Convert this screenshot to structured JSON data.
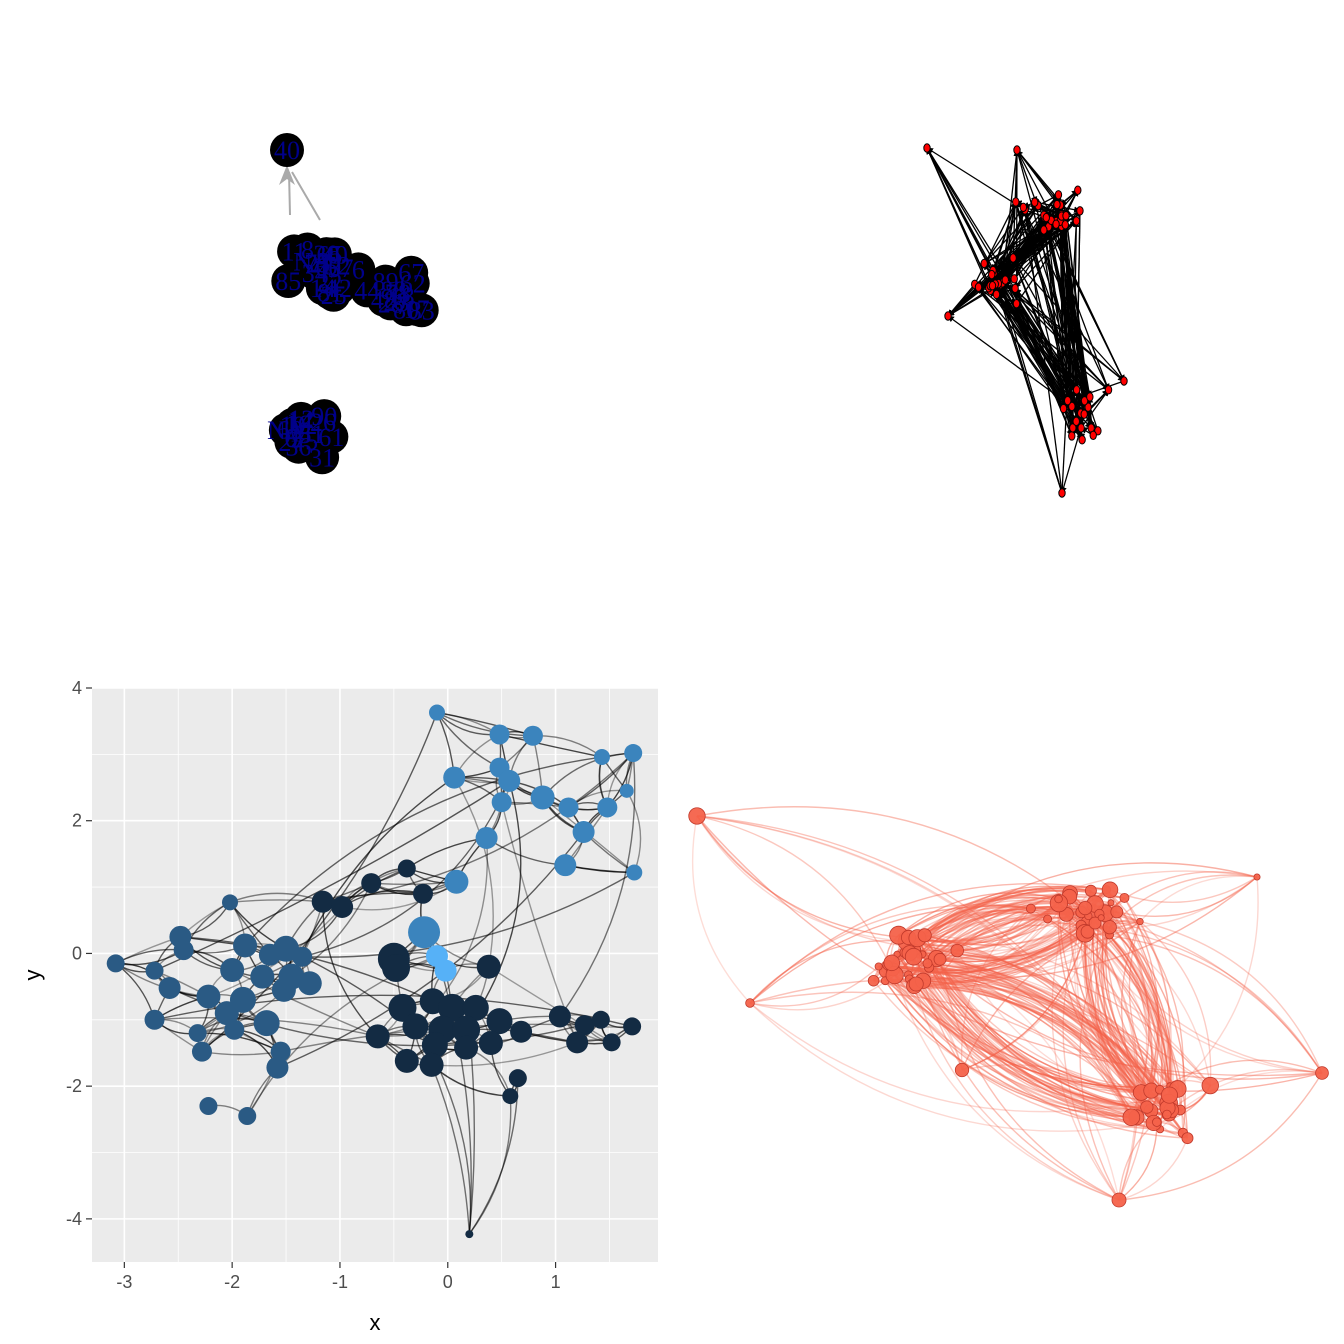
{
  "colors": {
    "panel_bg": "#ebebeb",
    "grid": "#ffffff",
    "edge_dark": "#000000",
    "edge_grey": "#aaaaaa",
    "node_black": "#000000",
    "label_navy": "#00008b",
    "node_red": "#ff0000",
    "node_salmon": "#f4624a",
    "group_colors": [
      "#132b43",
      "#2a5a84",
      "#3b84bd",
      "#56b1f7"
    ]
  },
  "chart_data": [
    {
      "type": "network",
      "panel": "top-left",
      "node_style": "large black circles with navy labels",
      "node_labels": [
        "11",
        "NA",
        "6",
        "60",
        "14",
        "75",
        "40",
        "42",
        "8",
        "20",
        "9",
        "65",
        "85",
        "81",
        "25",
        "52",
        "22",
        "57",
        "34",
        "21",
        "44",
        "80",
        "89",
        "88",
        "23",
        "83",
        "62",
        "28",
        "48",
        "67",
        "7",
        "17",
        "18",
        "78",
        "61",
        "19",
        "51",
        "36",
        "31",
        "26",
        "12",
        "90",
        "24",
        "16"
      ]
    },
    {
      "type": "network",
      "panel": "top-right",
      "node_style": "small red nodes with black directed edges"
    },
    {
      "type": "scatter",
      "panel": "bottom-left",
      "xlabel": "x",
      "ylabel": "y",
      "xlim": [
        -3.3,
        1.95
      ],
      "ylim": [
        -4.65,
        4.0
      ],
      "x_ticks": [
        -3,
        -2,
        -1,
        0,
        1
      ],
      "x_tick_labels": [
        "-3",
        "-2",
        "-1",
        "0",
        "1"
      ],
      "y_ticks": [
        -4,
        -2,
        0,
        2,
        4
      ],
      "y_tick_labels": [
        "-4",
        "-2",
        "0",
        "2",
        "4"
      ],
      "grid": true,
      "legend": "none",
      "nodes": [
        {
          "x": -0.1,
          "y": 3.63,
          "size": 8,
          "group": 2
        },
        {
          "x": 0.48,
          "y": 3.3,
          "size": 10,
          "group": 2
        },
        {
          "x": 0.79,
          "y": 3.28,
          "size": 10,
          "group": 2
        },
        {
          "x": 1.72,
          "y": 3.02,
          "size": 9,
          "group": 2
        },
        {
          "x": 1.43,
          "y": 2.96,
          "size": 8,
          "group": 2
        },
        {
          "x": 0.06,
          "y": 2.65,
          "size": 11,
          "group": 2
        },
        {
          "x": 0.48,
          "y": 2.8,
          "size": 10,
          "group": 2
        },
        {
          "x": 0.57,
          "y": 2.6,
          "size": 11,
          "group": 2
        },
        {
          "x": 1.66,
          "y": 2.45,
          "size": 7,
          "group": 2
        },
        {
          "x": 0.5,
          "y": 2.28,
          "size": 10,
          "group": 2
        },
        {
          "x": 0.88,
          "y": 2.35,
          "size": 12,
          "group": 2
        },
        {
          "x": 1.12,
          "y": 2.2,
          "size": 10,
          "group": 2
        },
        {
          "x": 1.48,
          "y": 2.2,
          "size": 10,
          "group": 2
        },
        {
          "x": 1.26,
          "y": 1.83,
          "size": 11,
          "group": 2
        },
        {
          "x": 0.36,
          "y": 1.74,
          "size": 11,
          "group": 2
        },
        {
          "x": 1.09,
          "y": 1.33,
          "size": 11,
          "group": 2
        },
        {
          "x": 1.73,
          "y": 1.22,
          "size": 8,
          "group": 2
        },
        {
          "x": 0.08,
          "y": 1.08,
          "size": 12,
          "group": 2
        },
        {
          "x": -0.38,
          "y": 1.28,
          "size": 9,
          "group": 0
        },
        {
          "x": -0.71,
          "y": 1.06,
          "size": 10,
          "group": 0
        },
        {
          "x": -0.23,
          "y": 0.9,
          "size": 10,
          "group": 0
        },
        {
          "x": -1.16,
          "y": 0.78,
          "size": 11,
          "group": 0
        },
        {
          "x": -0.98,
          "y": 0.7,
          "size": 11,
          "group": 0
        },
        {
          "x": -2.02,
          "y": 0.77,
          "size": 8,
          "group": 1
        },
        {
          "x": -0.22,
          "y": 0.32,
          "size": 16,
          "group": 2
        },
        {
          "x": -0.1,
          "y": -0.04,
          "size": 11,
          "group": 3
        },
        {
          "x": -0.02,
          "y": -0.26,
          "size": 11,
          "group": 3
        },
        {
          "x": -0.5,
          "y": -0.08,
          "size": 16,
          "group": 0
        },
        {
          "x": -0.48,
          "y": -0.22,
          "size": 14,
          "group": 0
        },
        {
          "x": 0.38,
          "y": -0.2,
          "size": 12,
          "group": 0
        },
        {
          "x": -3.08,
          "y": -0.15,
          "size": 9,
          "group": 1
        },
        {
          "x": -2.48,
          "y": 0.25,
          "size": 11,
          "group": 1
        },
        {
          "x": -2.45,
          "y": 0.05,
          "size": 10,
          "group": 1
        },
        {
          "x": -1.88,
          "y": 0.12,
          "size": 12,
          "group": 1
        },
        {
          "x": -1.5,
          "y": 0.07,
          "size": 13,
          "group": 1
        },
        {
          "x": -1.65,
          "y": -0.02,
          "size": 11,
          "group": 1
        },
        {
          "x": -1.35,
          "y": -0.05,
          "size": 10,
          "group": 1
        },
        {
          "x": -2.72,
          "y": -0.26,
          "size": 9,
          "group": 1
        },
        {
          "x": -2.0,
          "y": -0.25,
          "size": 12,
          "group": 1
        },
        {
          "x": -1.72,
          "y": -0.35,
          "size": 12,
          "group": 1
        },
        {
          "x": -1.45,
          "y": -0.35,
          "size": 13,
          "group": 1
        },
        {
          "x": -2.58,
          "y": -0.52,
          "size": 11,
          "group": 1
        },
        {
          "x": -1.28,
          "y": -0.45,
          "size": 12,
          "group": 1
        },
        {
          "x": -1.52,
          "y": -0.55,
          "size": 12,
          "group": 1
        },
        {
          "x": -2.22,
          "y": -0.65,
          "size": 12,
          "group": 1
        },
        {
          "x": -1.9,
          "y": -0.7,
          "size": 13,
          "group": 1
        },
        {
          "x": -2.05,
          "y": -0.9,
          "size": 12,
          "group": 1
        },
        {
          "x": -1.68,
          "y": -1.05,
          "size": 13,
          "group": 1
        },
        {
          "x": -2.72,
          "y": -1.0,
          "size": 10,
          "group": 1
        },
        {
          "x": -2.32,
          "y": -1.2,
          "size": 9,
          "group": 1
        },
        {
          "x": -2.28,
          "y": -1.48,
          "size": 10,
          "group": 1
        },
        {
          "x": -1.55,
          "y": -1.48,
          "size": 10,
          "group": 1
        },
        {
          "x": -1.98,
          "y": -1.15,
          "size": 10,
          "group": 1
        },
        {
          "x": -1.58,
          "y": -1.72,
          "size": 11,
          "group": 1
        },
        {
          "x": -2.22,
          "y": -2.3,
          "size": 9,
          "group": 1
        },
        {
          "x": -1.86,
          "y": -2.45,
          "size": 9,
          "group": 1
        },
        {
          "x": -0.42,
          "y": -0.82,
          "size": 14,
          "group": 0
        },
        {
          "x": -0.14,
          "y": -0.72,
          "size": 13,
          "group": 0
        },
        {
          "x": 0.04,
          "y": -0.82,
          "size": 14,
          "group": 0
        },
        {
          "x": 0.26,
          "y": -0.82,
          "size": 13,
          "group": 0
        },
        {
          "x": 0.48,
          "y": -1.02,
          "size": 13,
          "group": 0
        },
        {
          "x": -0.3,
          "y": -1.1,
          "size": 13,
          "group": 0
        },
        {
          "x": -0.05,
          "y": -1.15,
          "size": 14,
          "group": 0
        },
        {
          "x": 0.17,
          "y": -1.15,
          "size": 14,
          "group": 0
        },
        {
          "x": 0.68,
          "y": -1.18,
          "size": 11,
          "group": 0
        },
        {
          "x": 1.04,
          "y": -0.95,
          "size": 11,
          "group": 0
        },
        {
          "x": 1.27,
          "y": -1.08,
          "size": 10,
          "group": 0
        },
        {
          "x": 1.42,
          "y": -1.0,
          "size": 9,
          "group": 0
        },
        {
          "x": 1.71,
          "y": -1.1,
          "size": 9,
          "group": 0
        },
        {
          "x": -0.65,
          "y": -1.25,
          "size": 12,
          "group": 0
        },
        {
          "x": -0.12,
          "y": -1.38,
          "size": 13,
          "group": 0
        },
        {
          "x": 0.17,
          "y": -1.42,
          "size": 12,
          "group": 0
        },
        {
          "x": 0.4,
          "y": -1.35,
          "size": 12,
          "group": 0
        },
        {
          "x": 1.2,
          "y": -1.34,
          "size": 11,
          "group": 0
        },
        {
          "x": 1.52,
          "y": -1.34,
          "size": 9,
          "group": 0
        },
        {
          "x": -0.38,
          "y": -1.62,
          "size": 12,
          "group": 0
        },
        {
          "x": -0.15,
          "y": -1.68,
          "size": 12,
          "group": 0
        },
        {
          "x": 0.65,
          "y": -1.88,
          "size": 9,
          "group": 0
        },
        {
          "x": 0.58,
          "y": -2.15,
          "size": 8,
          "group": 0
        },
        {
          "x": 0.2,
          "y": -4.23,
          "size": 4,
          "group": 0
        }
      ]
    },
    {
      "type": "network",
      "panel": "bottom-right",
      "node_style": "salmon nodes with curved translucent edges"
    }
  ]
}
